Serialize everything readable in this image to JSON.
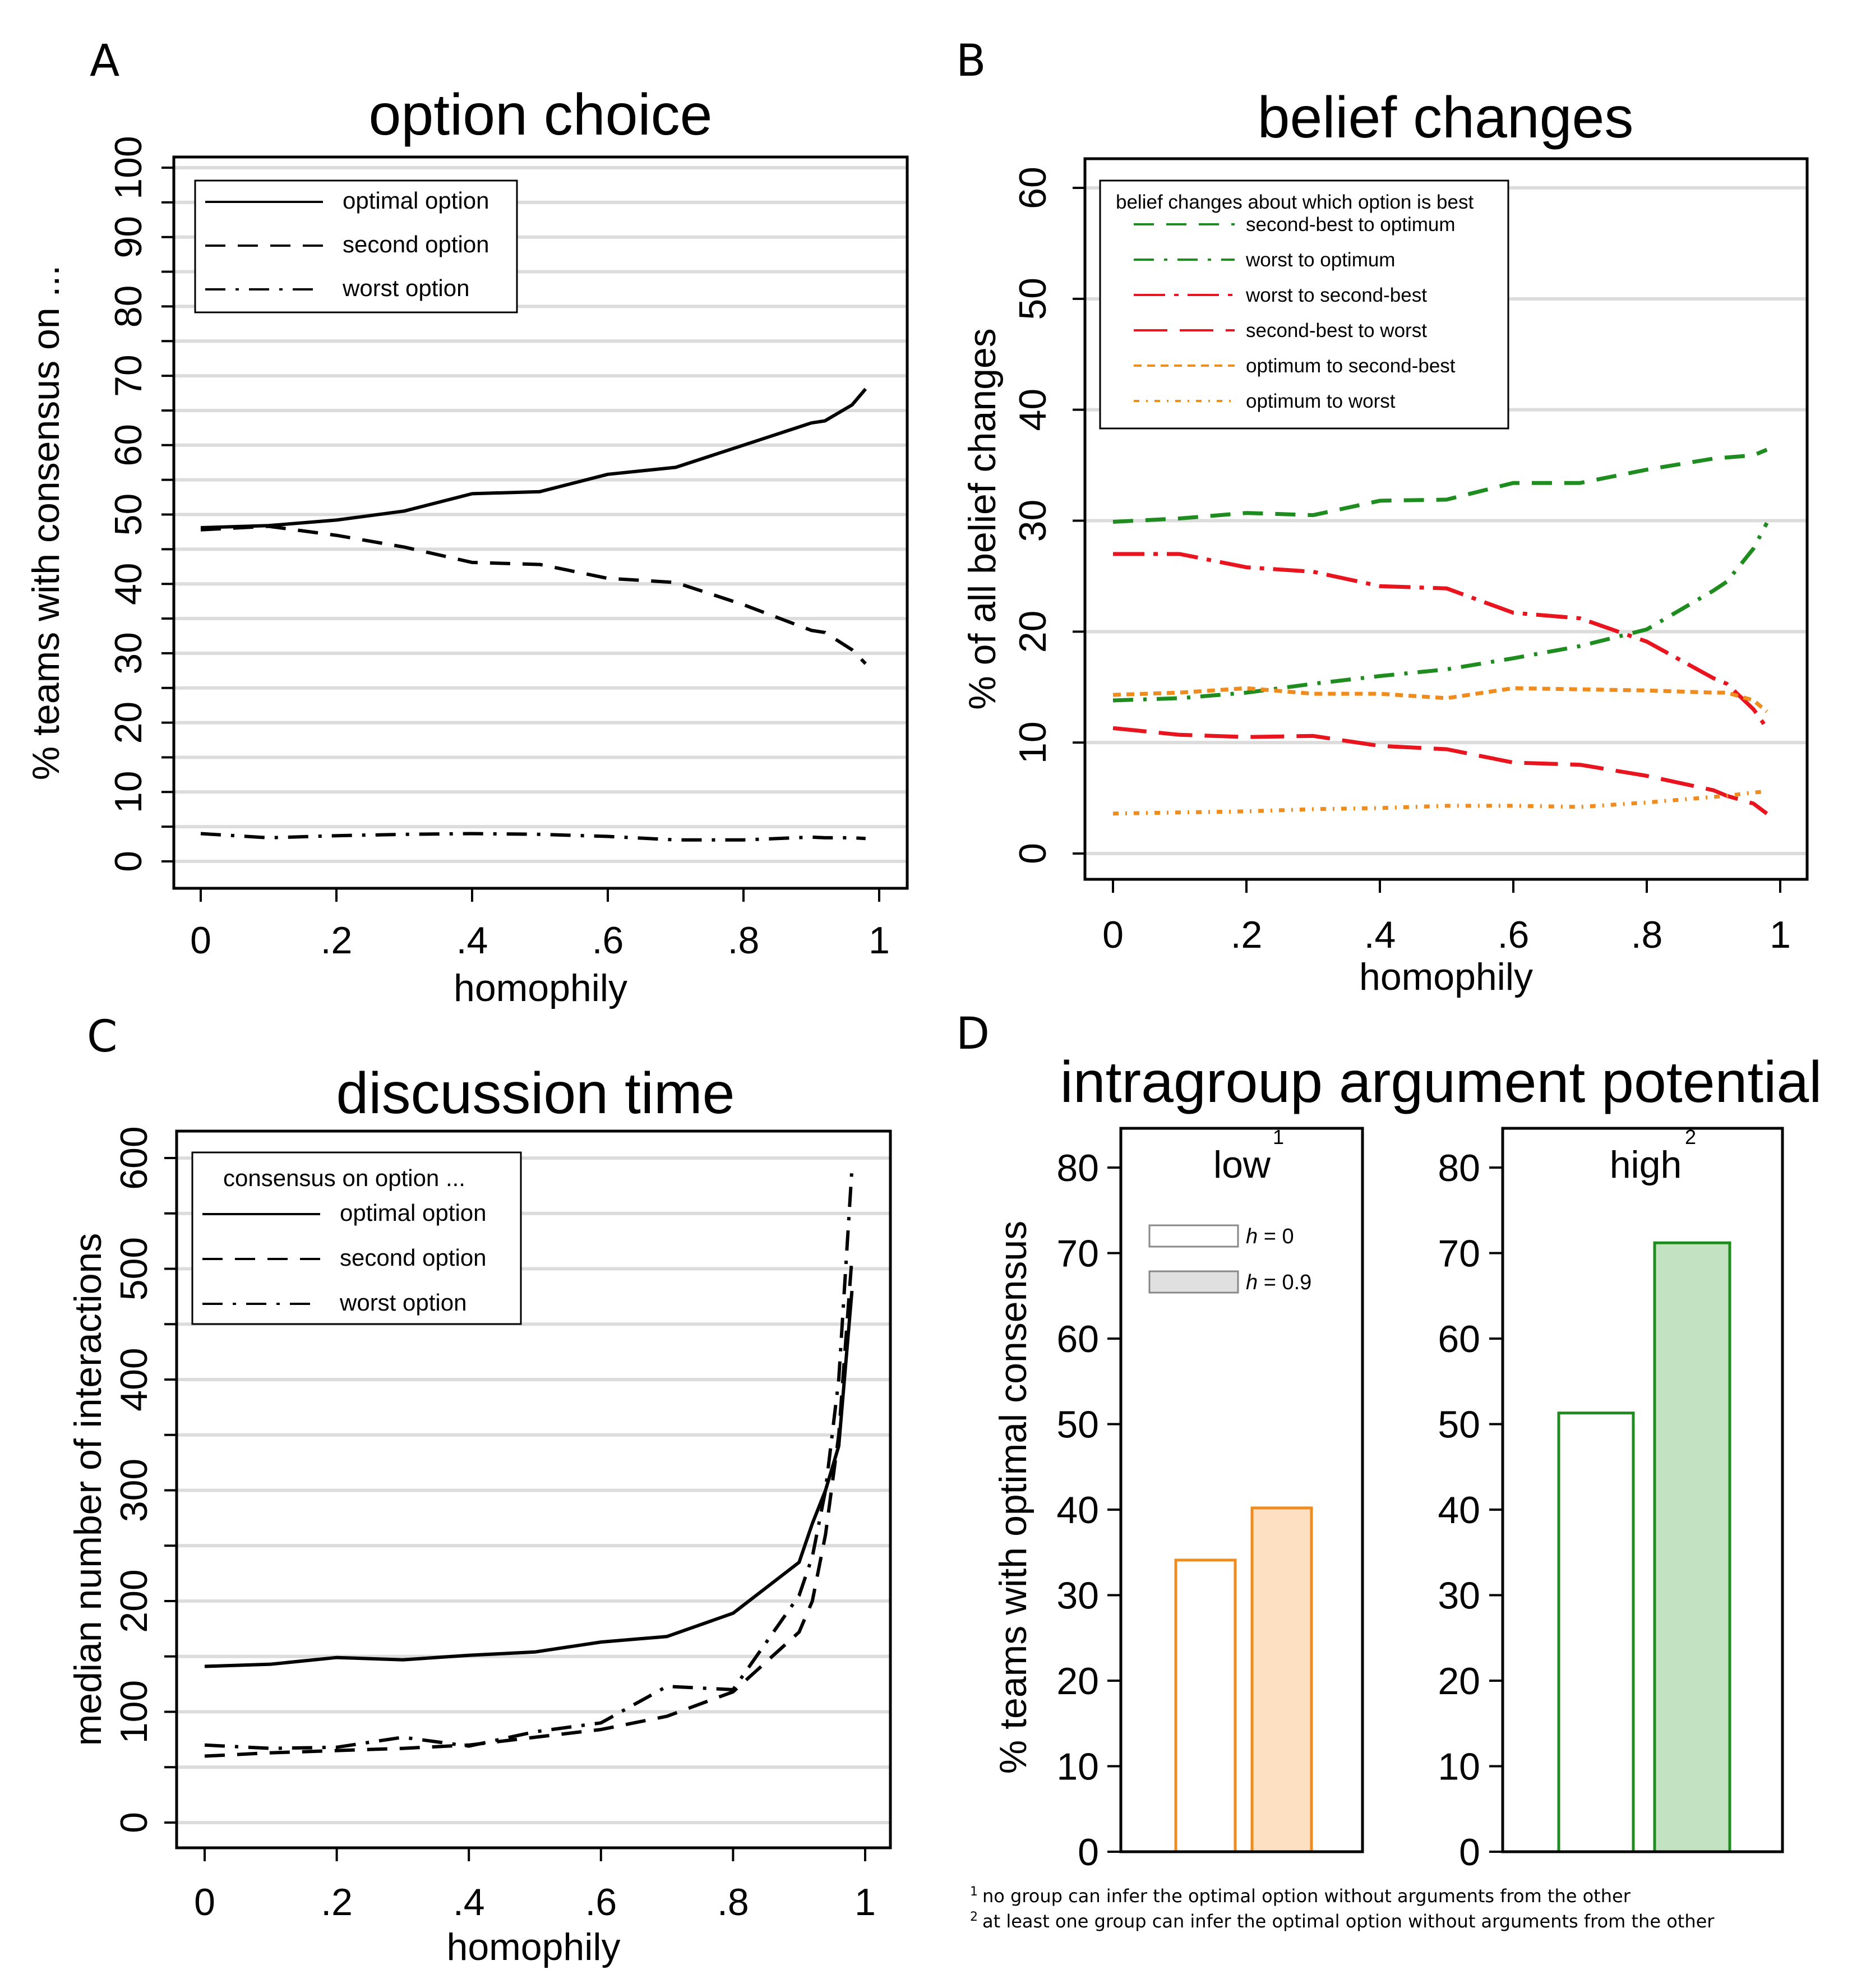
{
  "chart_data": [
    {
      "panel": "A",
      "type": "line",
      "title": "option choice",
      "xlabel": "homophily",
      "ylabel": "% teams with consensus on ...",
      "xlim": [
        0,
        1
      ],
      "ylim": [
        0,
        100
      ],
      "x_ticks": [
        "0",
        ".2",
        ".4",
        ".6",
        ".8",
        "1"
      ],
      "y_ticks": [
        "0",
        "10",
        "20",
        "30",
        "40",
        "50",
        "60",
        "70",
        "80",
        "90",
        "100"
      ],
      "grid": true,
      "legend_position": "top-left",
      "x": [
        0,
        0.1,
        0.2,
        0.3,
        0.4,
        0.5,
        0.6,
        0.7,
        0.8,
        0.9,
        0.92,
        0.96,
        0.98
      ],
      "series": [
        {
          "name": "optimal option",
          "style": "solid",
          "color": "#000000",
          "values": [
            48.1,
            48.4,
            49.2,
            50.5,
            53.0,
            53.3,
            55.8,
            56.8,
            60.0,
            63.2,
            63.5,
            65.8,
            68.1
          ]
        },
        {
          "name": "second option",
          "style": "dashed",
          "color": "#000000",
          "values": [
            47.8,
            48.3,
            47.0,
            45.3,
            43.1,
            42.8,
            40.8,
            40.2,
            37.0,
            33.3,
            33.0,
            30.5,
            28.5
          ]
        },
        {
          "name": "worst option",
          "style": "dashdot",
          "color": "#000000",
          "values": [
            4.0,
            3.4,
            3.7,
            3.9,
            4.0,
            3.9,
            3.6,
            3.1,
            3.1,
            3.5,
            3.4,
            3.4,
            3.3
          ]
        }
      ]
    },
    {
      "panel": "B",
      "type": "line",
      "title": "belief changes",
      "xlabel": "homophily",
      "ylabel": "% of all belief changes",
      "xlim": [
        0,
        1
      ],
      "ylim": [
        0,
        60
      ],
      "x_ticks": [
        "0",
        ".2",
        ".4",
        ".6",
        ".8",
        "1"
      ],
      "y_ticks": [
        "0",
        "10",
        "20",
        "30",
        "40",
        "50",
        "60"
      ],
      "grid": true,
      "legend_position": "top-left",
      "legend_title": "belief changes about which option is best",
      "x": [
        0,
        0.1,
        0.2,
        0.3,
        0.4,
        0.5,
        0.6,
        0.7,
        0.8,
        0.9,
        0.92,
        0.96,
        0.98
      ],
      "series": [
        {
          "name": "second-best to optimum",
          "style": "dashed",
          "color": "#1e8c1e",
          "values": [
            29.9,
            30.2,
            30.7,
            30.5,
            31.8,
            31.9,
            33.4,
            33.4,
            34.6,
            35.6,
            35.7,
            35.9,
            36.4
          ]
        },
        {
          "name": "worst to optimum",
          "style": "dashdot",
          "color": "#1e8c1e",
          "values": [
            13.8,
            14.0,
            14.5,
            15.3,
            16.0,
            16.6,
            17.6,
            18.7,
            20.2,
            23.7,
            24.5,
            27.5,
            29.8
          ]
        },
        {
          "name": "worst to second-best",
          "style": "longdashdot",
          "color": "#e8141e",
          "values": [
            27.0,
            27.0,
            25.8,
            25.4,
            24.1,
            23.9,
            21.7,
            21.2,
            19.1,
            15.8,
            15.3,
            13.0,
            11.3
          ]
        },
        {
          "name": "second-best to worst",
          "style": "longdash",
          "color": "#e8141e",
          "values": [
            11.3,
            10.7,
            10.5,
            10.6,
            9.7,
            9.4,
            8.2,
            8.0,
            7.0,
            5.7,
            5.2,
            4.5,
            3.6
          ]
        },
        {
          "name": "optimum to second-best",
          "style": "shortdash",
          "color": "#f08c1e",
          "values": [
            14.3,
            14.5,
            14.9,
            14.4,
            14.4,
            14.0,
            14.9,
            14.8,
            14.7,
            14.5,
            14.5,
            13.8,
            12.8
          ]
        },
        {
          "name": "optimum to worst",
          "style": "dotdash",
          "color": "#f08c1e",
          "values": [
            3.6,
            3.7,
            3.8,
            4.0,
            4.1,
            4.3,
            4.3,
            4.2,
            4.6,
            5.1,
            5.2,
            5.5,
            5.6
          ]
        }
      ]
    },
    {
      "panel": "C",
      "type": "line",
      "title": "discussion time",
      "xlabel": "homophily",
      "ylabel": "median number of interactions",
      "xlim": [
        0,
        1
      ],
      "ylim": [
        0,
        600
      ],
      "x_ticks": [
        "0",
        ".2",
        ".4",
        ".6",
        ".8",
        "1"
      ],
      "y_ticks": [
        "0",
        "100",
        "200",
        "300",
        "400",
        "500",
        "600"
      ],
      "grid": true,
      "legend_position": "top-left",
      "legend_title": "consensus on option ...",
      "x": [
        0,
        0.1,
        0.2,
        0.3,
        0.4,
        0.5,
        0.6,
        0.7,
        0.8,
        0.9,
        0.92,
        0.94,
        0.96,
        0.98
      ],
      "series": [
        {
          "name": "optimal option",
          "style": "solid",
          "color": "#000000",
          "values": [
            141,
            143,
            149,
            147,
            151,
            154,
            163,
            168,
            189,
            235,
            270,
            300,
            340,
            480
          ]
        },
        {
          "name": "second option",
          "style": "dashed",
          "color": "#000000",
          "values": [
            60,
            63,
            65,
            67,
            70,
            77,
            84,
            96,
            118,
            172,
            200,
            260,
            350,
            510
          ]
        },
        {
          "name": "worst option",
          "style": "dashdot",
          "color": "#000000",
          "values": [
            70,
            67,
            68,
            77,
            69,
            82,
            90,
            123,
            120,
            205,
            240,
            300,
            400,
            590
          ]
        }
      ]
    },
    {
      "panel": "D",
      "type": "bar",
      "title": "intragroup argument potential",
      "ylabel": "% teams with optimal consensus",
      "ylim": [
        0,
        80
      ],
      "y_ticks": [
        "0",
        "10",
        "20",
        "30",
        "40",
        "50",
        "60",
        "70",
        "80"
      ],
      "legend_position": "top-left",
      "legend": [
        {
          "label_italic": "h",
          "label_rest": " = 0",
          "fill": "#ffffff"
        },
        {
          "label_italic": "h",
          "label_rest": " = 0.9",
          "fill": "#e0e0e0"
        }
      ],
      "groups": [
        {
          "name": "low",
          "superscript": "1",
          "edge_color": "#f08c1e",
          "fill_color": "#fde0c2",
          "categories": [
            "h = 0",
            "h = 0.9"
          ],
          "values": [
            34.1,
            40.2
          ]
        },
        {
          "name": "high",
          "superscript": "2",
          "edge_color": "#1e8c1e",
          "fill_color": "#c2e2c2",
          "categories": [
            "h = 0",
            "h = 0.9"
          ],
          "values": [
            51.3,
            71.2
          ]
        }
      ],
      "footnotes": [
        {
          "mark": "1",
          "text": "no group can infer the optimal option without arguments from the other"
        },
        {
          "mark": "2",
          "text": "at least one group can infer the optimal option without arguments from the other"
        }
      ]
    }
  ],
  "panel_letters": [
    "A",
    "B",
    "C",
    "D"
  ]
}
